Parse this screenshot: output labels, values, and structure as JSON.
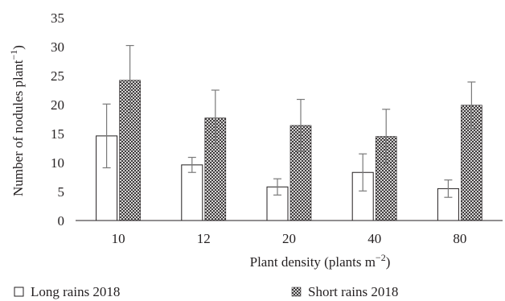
{
  "chart_data": {
    "type": "bar",
    "xlabel_main": "Plant density (plants m",
    "xlabel_sup": "−2",
    "xlabel_close": ")",
    "ylabel_main": "Number of nodules plant",
    "ylabel_sup": "−1",
    "ylabel_close": ")",
    "ylabel_open": "(",
    "categories": [
      "10",
      "12",
      "20",
      "40",
      "80"
    ],
    "ylim": [
      0,
      35
    ],
    "yticks": [
      0,
      5,
      10,
      15,
      20,
      25,
      30,
      35
    ],
    "grid": false,
    "legend_position": "bottom",
    "series": [
      {
        "name": "Long rains 2018",
        "pattern": "open",
        "values": [
          14.6,
          9.6,
          5.8,
          8.3,
          5.5
        ],
        "errors": [
          5.5,
          1.3,
          1.4,
          3.2,
          1.5
        ]
      },
      {
        "name": "Short rains 2018",
        "pattern": "crosshatch",
        "values": [
          24.2,
          17.7,
          16.4,
          14.5,
          19.9
        ],
        "errors": [
          6.0,
          4.8,
          4.5,
          4.7,
          4.0
        ]
      }
    ],
    "colors": {
      "axis": "#231f20",
      "text": "#231f20",
      "bar_edge": "#231f20",
      "error": "#7a7a7a"
    }
  }
}
